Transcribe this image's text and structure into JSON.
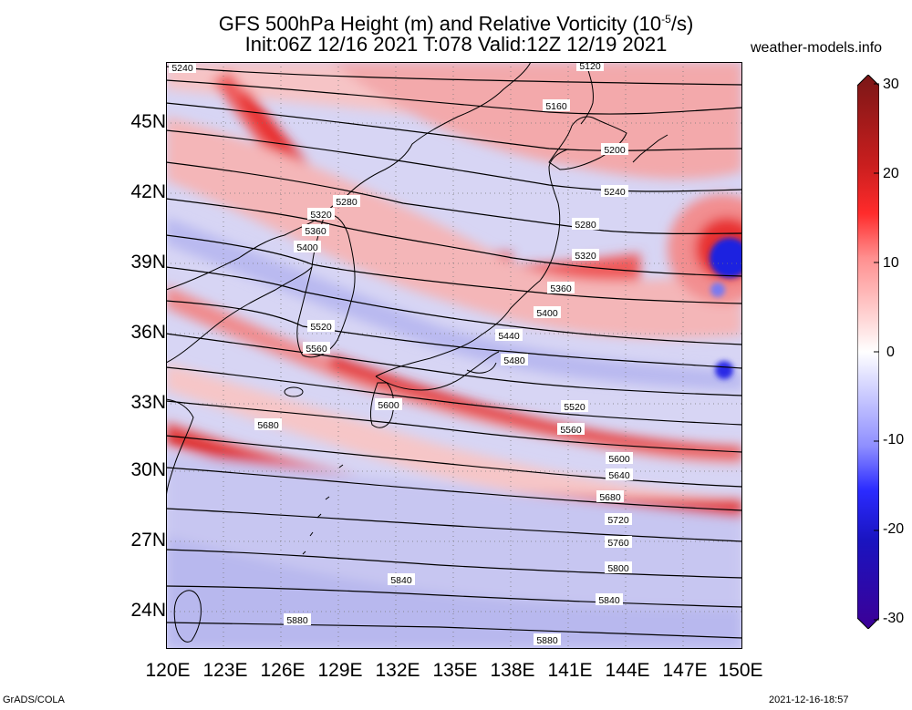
{
  "header": {
    "title_main": "GFS 500hPa Height (m) and Relative Vorticity (10",
    "title_exp": "-5",
    "title_unit": "/s)",
    "subtitle": "Init:06Z 12/16 2021 T:078 Valid:12Z 12/19 2021",
    "site": "weather-models.info"
  },
  "axes": {
    "lat_labels": [
      "45N",
      "42N",
      "39N",
      "36N",
      "33N",
      "30N",
      "27N",
      "24N"
    ],
    "lon_labels": [
      "120E",
      "123E",
      "126E",
      "129E",
      "132E",
      "135E",
      "138E",
      "141E",
      "144E",
      "147E",
      "150E"
    ]
  },
  "colorbar": {
    "ticks": [
      "30",
      "20",
      "10",
      "0",
      "-10",
      "-20",
      "-30"
    ],
    "colors": [
      "#7a1616",
      "#c81e1e",
      "#ff2b2b",
      "#ff8f8f",
      "#ffd6d6",
      "#ffffff",
      "#d6d6ff",
      "#8f8fff",
      "#2b2bff",
      "#1a14c0",
      "#3c0096"
    ]
  },
  "contour_labels": [
    "5240",
    "5120",
    "5160",
    "5200",
    "5240",
    "5280",
    "5320",
    "5360",
    "5400",
    "5440",
    "5480",
    "5520",
    "5560",
    "5600",
    "5640",
    "5680",
    "5720",
    "5760",
    "5800",
    "5840",
    "5880"
  ],
  "map_labels": [
    {
      "text": "5240"
    },
    {
      "text": "5120"
    },
    {
      "text": "5160"
    },
    {
      "text": "5200"
    },
    {
      "text": "5240"
    },
    {
      "text": "5280"
    },
    {
      "text": "5280"
    },
    {
      "text": "5320"
    },
    {
      "text": "5320"
    },
    {
      "text": "5360"
    },
    {
      "text": "5360"
    },
    {
      "text": "5400"
    },
    {
      "text": "5400"
    },
    {
      "text": "5440"
    },
    {
      "text": "5480"
    },
    {
      "text": "5520"
    },
    {
      "text": "5520"
    },
    {
      "text": "5560"
    },
    {
      "text": "5560"
    },
    {
      "text": "5600"
    },
    {
      "text": "5600"
    },
    {
      "text": "5640"
    },
    {
      "text": "5680"
    },
    {
      "text": "5680"
    },
    {
      "text": "5720"
    },
    {
      "text": "5760"
    },
    {
      "text": "5800"
    },
    {
      "text": "5840"
    },
    {
      "text": "5840"
    },
    {
      "text": "5880"
    },
    {
      "text": "5880"
    }
  ],
  "footer": {
    "left": "GrADS/COLA",
    "right": "2021-12-16-18:57"
  }
}
